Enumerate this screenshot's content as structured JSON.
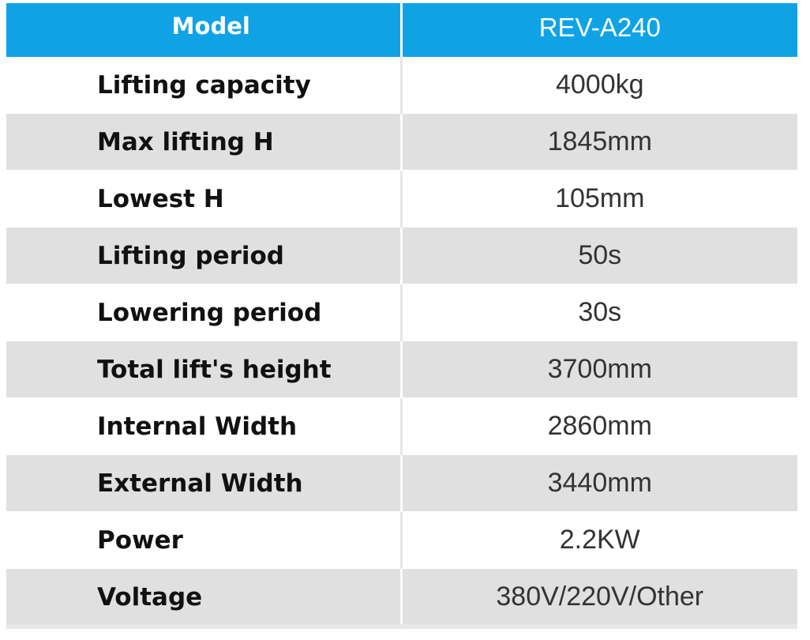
{
  "table": {
    "header": {
      "label": "Model",
      "value": "REV-A240"
    },
    "rows": [
      {
        "label": "Lifting capacity",
        "value": "4000kg"
      },
      {
        "label": "Max lifting H",
        "value": "1845mm"
      },
      {
        "label": "Lowest H",
        "value": "105mm"
      },
      {
        "label": "Lifting period",
        "value": "50s"
      },
      {
        "label": "Lowering period",
        "value": "30s"
      },
      {
        "label": "Total lift's height",
        "value": "3700mm"
      },
      {
        "label": "Internal Width",
        "value": "2860mm"
      },
      {
        "label": "External Width",
        "value": "3440mm"
      },
      {
        "label": "Power",
        "value": "2.2KW"
      },
      {
        "label": "Voltage",
        "value": "380V/220V/Other"
      }
    ]
  },
  "colors": {
    "header_bg": "#0fa3e6",
    "row_alt_bg": "#e0e0e0",
    "row_bg": "#ffffff"
  }
}
